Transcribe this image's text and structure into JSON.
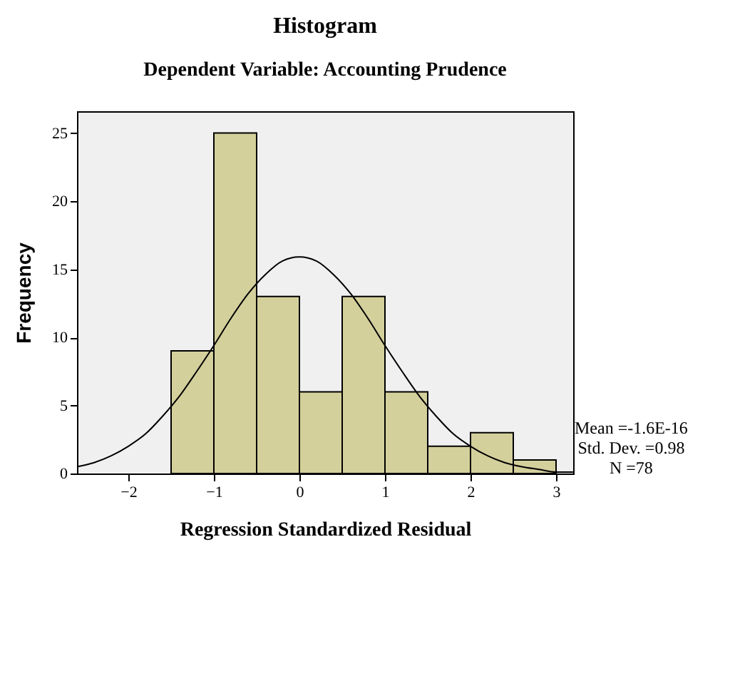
{
  "chart_data": {
    "type": "histogram",
    "title": "Histogram",
    "subtitle": "Dependent Variable: Accounting Prudence",
    "xlabel": "Regression Standardized Residual",
    "ylabel": "Frequency",
    "bins": [
      -1.5,
      -1,
      -0.5,
      0,
      0.5,
      1,
      1.5,
      2,
      2.5,
      3
    ],
    "values": [
      9,
      25,
      13,
      6,
      13,
      6,
      2,
      3,
      1
    ],
    "color": "#d4d09c",
    "series": [
      {
        "type": "line",
        "color": "#000000",
        "x": [
          -2.6,
          -2.4,
          -2.2,
          -2,
          -1.8,
          -1.6,
          -1.4,
          -1.2,
          -1,
          -0.8,
          -0.6,
          -0.4,
          -0.2,
          0,
          0.2,
          0.4,
          0.6,
          0.8,
          1,
          1.2,
          1.4,
          1.6,
          1.8,
          2,
          2.2,
          2.4,
          2.6,
          2.8,
          3,
          3.2
        ],
        "values": [
          0.5,
          0.8,
          1.3,
          2.0,
          2.9,
          4.2,
          5.7,
          7.5,
          9.4,
          11.4,
          13.2,
          14.6,
          15.6,
          15.9,
          15.6,
          14.6,
          13.2,
          11.4,
          9.4,
          7.5,
          5.7,
          4.2,
          2.9,
          2.0,
          1.3,
          0.8,
          0.5,
          0.3,
          0.1,
          0.1
        ]
      }
    ],
    "xlim": [
      -2.6,
      3.2
    ],
    "xticks": [
      -2,
      -1,
      0,
      1,
      2,
      3
    ],
    "ylim": [
      0,
      26.6
    ],
    "yticks": [
      0,
      5,
      10,
      15,
      20,
      25
    ],
    "grid": false,
    "annotations": [
      "Mean =-1.6E-16",
      "Std. Dev. =0.98",
      "N =78"
    ]
  }
}
